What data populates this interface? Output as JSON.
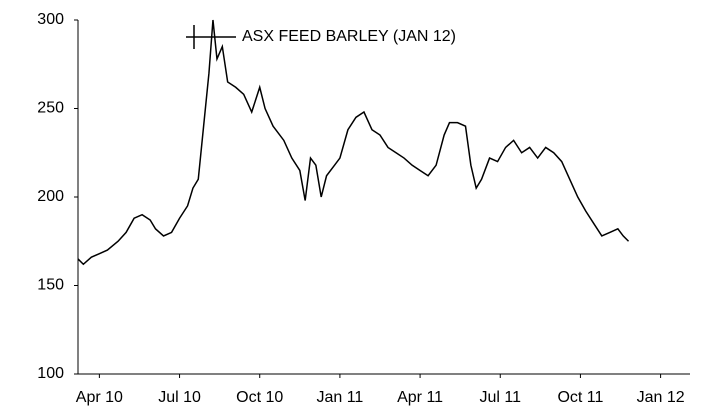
{
  "chart_data": {
    "type": "line",
    "x": [
      -0.8,
      -0.6,
      -0.3,
      0,
      0.3,
      0.7,
      1.0,
      1.3,
      1.6,
      1.9,
      2.1,
      2.4,
      2.7,
      3.0,
      3.3,
      3.5,
      3.7,
      3.9,
      4.1,
      4.25,
      4.4,
      4.6,
      4.8,
      5.1,
      5.4,
      5.7,
      6.0,
      6.2,
      6.5,
      6.9,
      7.2,
      7.5,
      7.7,
      7.9,
      8.1,
      8.3,
      8.5,
      8.8,
      9.0,
      9.3,
      9.6,
      9.9,
      10.2,
      10.5,
      10.8,
      11.1,
      11.4,
      11.7,
      12.0,
      12.3,
      12.6,
      12.9,
      13.1,
      13.4,
      13.7,
      13.9,
      14.1,
      14.3,
      14.6,
      14.9,
      15.2,
      15.5,
      15.8,
      16.1,
      16.4,
      16.7,
      17.0,
      17.3,
      17.6,
      17.9,
      18.2,
      18.5,
      18.8,
      19.1,
      19.4,
      19.6,
      19.8
    ],
    "series": [
      {
        "name": "ASX FEED BARLEY (JAN 12)",
        "color": "#000000",
        "values": [
          165,
          162,
          166,
          168,
          170,
          175,
          180,
          188,
          190,
          187,
          182,
          178,
          180,
          188,
          195,
          205,
          210,
          240,
          270,
          300,
          278,
          285,
          265,
          262,
          258,
          248,
          262,
          250,
          240,
          232,
          222,
          215,
          198,
          222,
          218,
          200,
          212,
          218,
          222,
          238,
          245,
          248,
          238,
          235,
          228,
          225,
          222,
          218,
          215,
          212,
          218,
          235,
          242,
          242,
          240,
          218,
          205,
          210,
          222,
          220,
          228,
          232,
          225,
          228,
          222,
          228,
          225,
          220,
          210,
          200,
          192,
          185,
          178,
          180,
          182,
          178,
          175
        ]
      }
    ],
    "xlim": [
      -0.8,
      22.1
    ],
    "xticks": [
      {
        "value": 0,
        "label": "Apr 10"
      },
      {
        "value": 3,
        "label": "Jul 10"
      },
      {
        "value": 6,
        "label": "Oct 10"
      },
      {
        "value": 9,
        "label": "Jan 11"
      },
      {
        "value": 12,
        "label": "Apr 11"
      },
      {
        "value": 15,
        "label": "Jul 11"
      },
      {
        "value": 18,
        "label": "Oct 11"
      },
      {
        "value": 21,
        "label": "Jan 12"
      }
    ],
    "ylim": [
      100,
      300
    ],
    "yticks": [
      100,
      150,
      200,
      250,
      300
    ],
    "grid": false
  }
}
